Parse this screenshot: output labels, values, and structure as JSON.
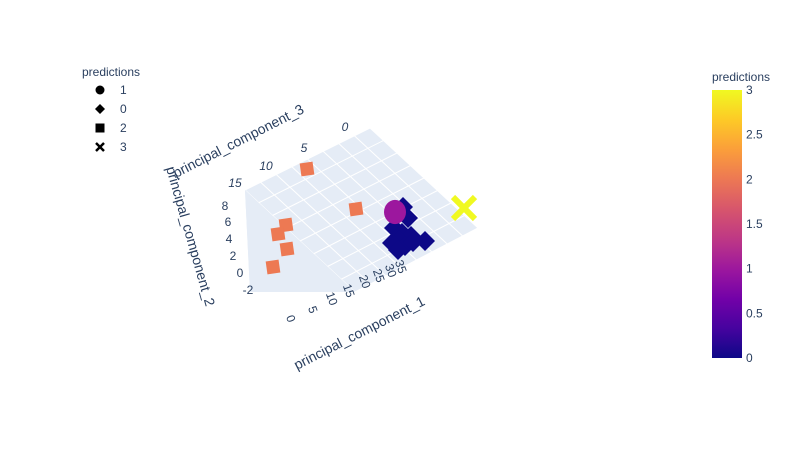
{
  "chart_data": {
    "type": "scatter3d",
    "legend": {
      "title": "predictions",
      "placement": "top-left",
      "entries": [
        {
          "label": "1",
          "symbol": "circle"
        },
        {
          "label": "0",
          "symbol": "diamond"
        },
        {
          "label": "2",
          "symbol": "square"
        },
        {
          "label": "3",
          "symbol": "x"
        }
      ]
    },
    "colorbar": {
      "title": "predictions",
      "range": [
        0,
        3
      ],
      "ticks": [
        "0",
        "0.5",
        "1",
        "1.5",
        "2",
        "2.5",
        "3"
      ],
      "colors": [
        "#0d0887",
        "#46039f",
        "#7201a8",
        "#9c179e",
        "#bd3786",
        "#d8576b",
        "#ed7953",
        "#fb9f3a",
        "#fdca26",
        "#f0f921"
      ]
    },
    "axes": {
      "x": {
        "label": "principal_component_1",
        "ticks": [
          "0",
          "5",
          "10",
          "15",
          "20",
          "25",
          "30",
          "35"
        ]
      },
      "y": {
        "label": "principal_component_2",
        "ticks": [
          "-2",
          "0",
          "2",
          "4",
          "6",
          "8"
        ]
      },
      "z": {
        "label": "principal_component_3",
        "ticks": [
          "0",
          "5",
          "10",
          "15"
        ]
      }
    },
    "series": [
      {
        "name": "1",
        "symbol": "circle",
        "value": 1,
        "color": "#9c179e"
      },
      {
        "name": "0",
        "symbol": "diamond",
        "value": 0,
        "color": "#0d0887"
      },
      {
        "name": "2",
        "symbol": "square",
        "value": 2,
        "color": "#ed7953"
      },
      {
        "name": "3",
        "symbol": "x",
        "value": 3,
        "color": "#f0f921"
      }
    ]
  }
}
